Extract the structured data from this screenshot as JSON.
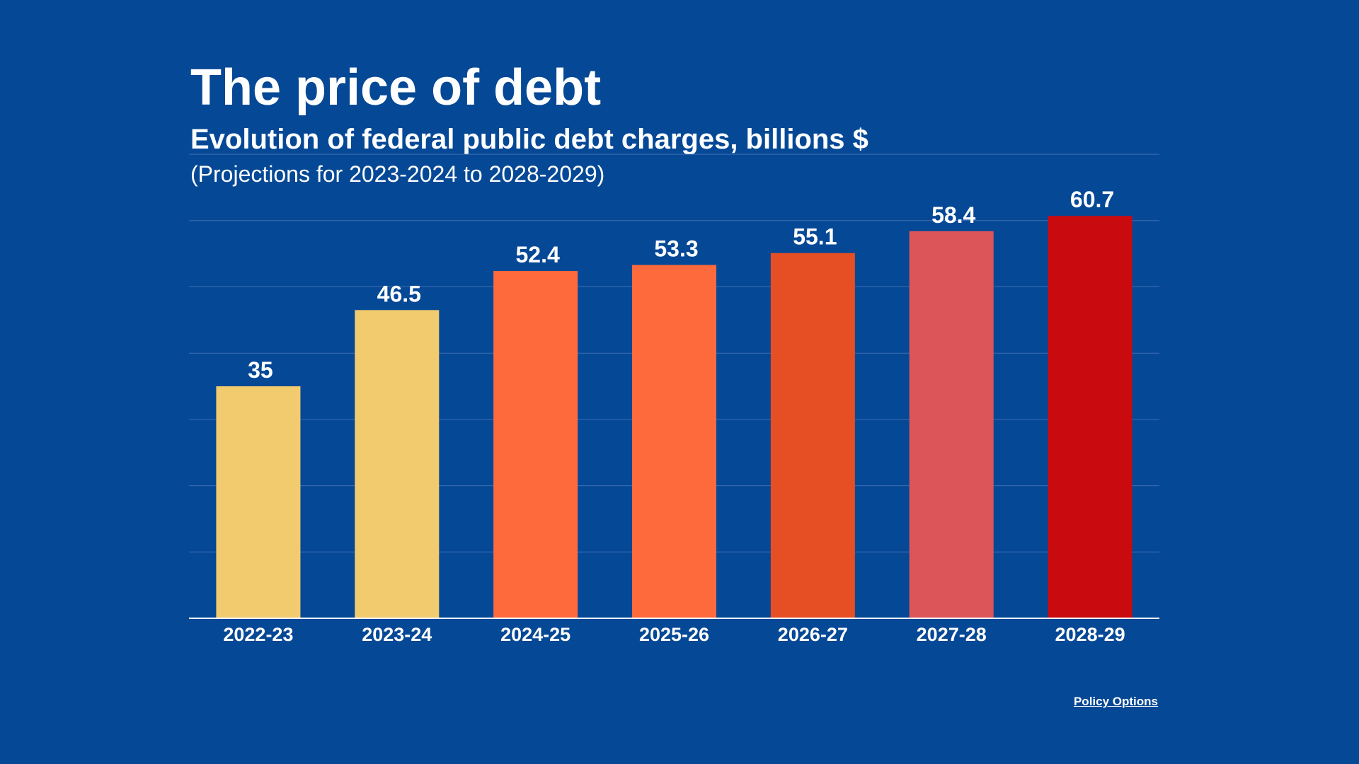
{
  "chart_data": {
    "type": "bar",
    "title": "The price of debt",
    "subtitle": "Evolution of federal public debt charges, billions $",
    "note": "(Projections for 2023-2024 to 2028-2029)",
    "categories": [
      "2022-23",
      "2023-24",
      "2024-25",
      "2025-26",
      "2026-27",
      "2027-28",
      "2028-29"
    ],
    "values": [
      35,
      46.5,
      52.4,
      53.3,
      55.1,
      58.4,
      60.7
    ],
    "value_labels": [
      "35",
      "46.5",
      "52.4",
      "53.3",
      "55.1",
      "58.4",
      "60.7"
    ],
    "colors": [
      "#F1CB6D",
      "#F1CB6D",
      "#FF6A3D",
      "#FF6A3D",
      "#E64E24",
      "#DC5558",
      "#C90A0E"
    ],
    "ylim": [
      0,
      70
    ],
    "gridlines": [
      10,
      20,
      30,
      40,
      50,
      60,
      70
    ],
    "grid": true,
    "legend": "none",
    "xlabel": "",
    "ylabel": ""
  },
  "source": "Policy Options",
  "colors": {
    "background": "#054896",
    "text": "#FFFFFF",
    "grid": "#3F6FB0",
    "axis": "#FFFFFF"
  }
}
